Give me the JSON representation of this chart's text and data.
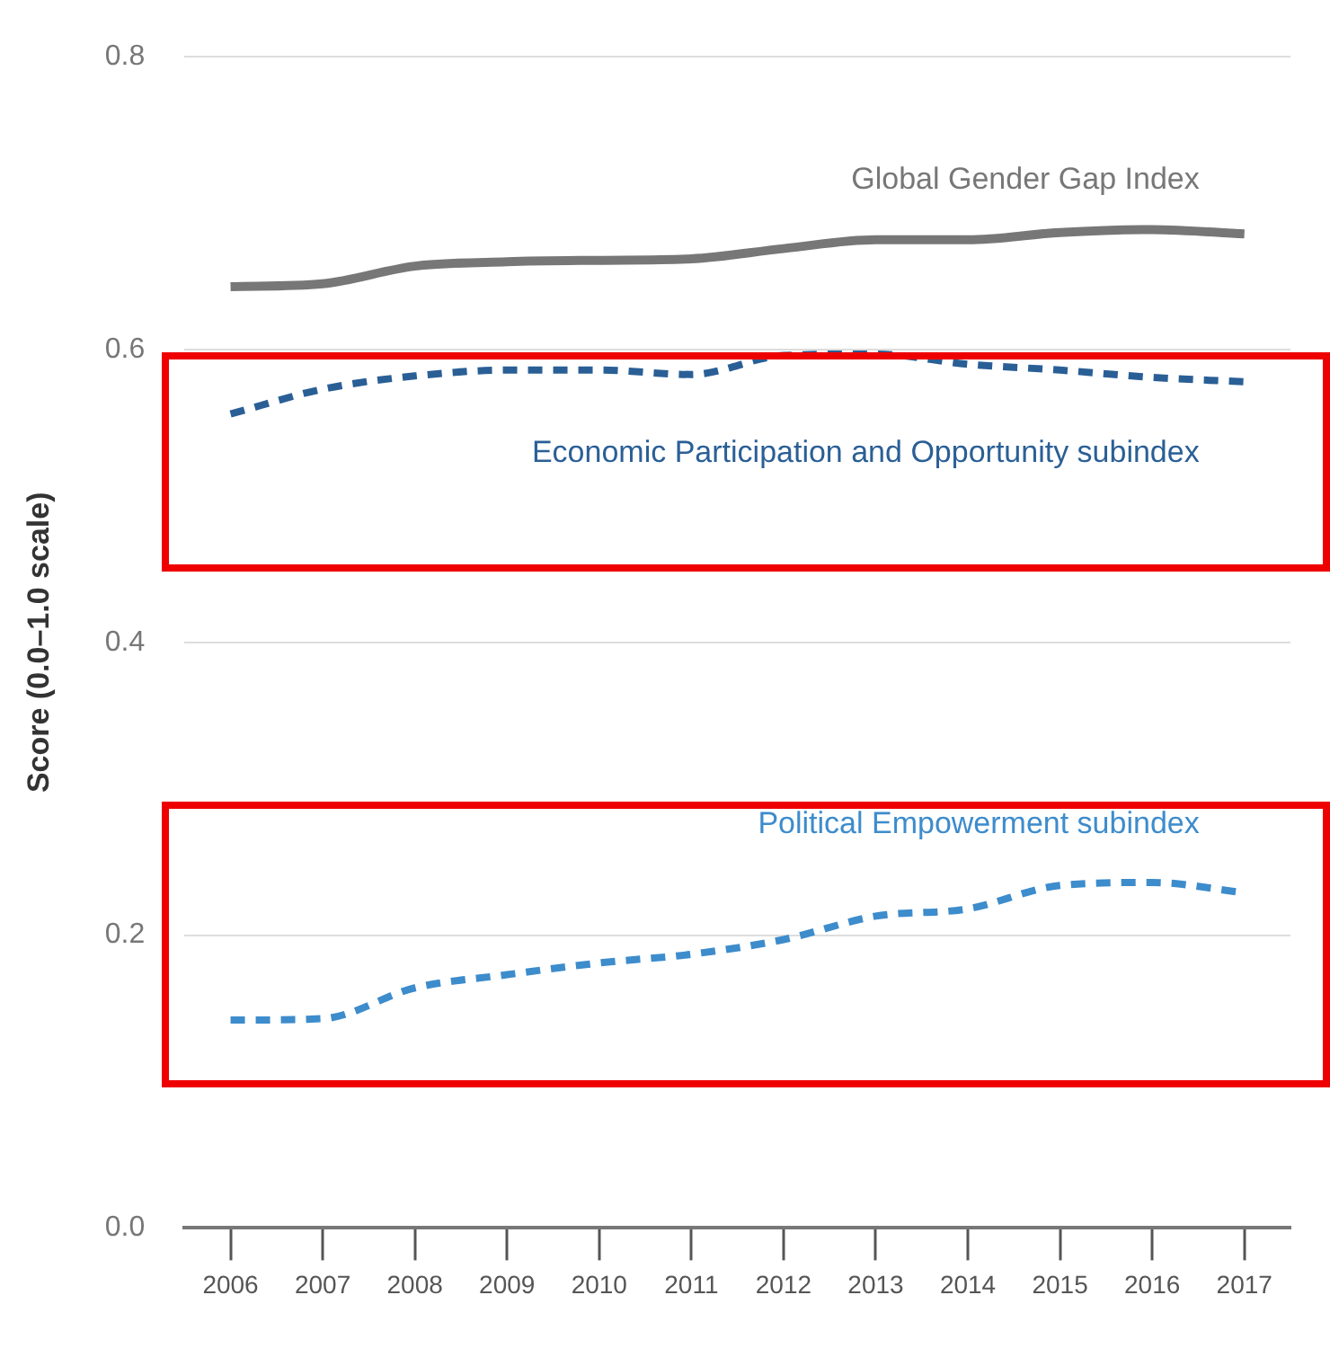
{
  "chart_data": {
    "type": "line",
    "ylabel": "Score (0.0–1.0 scale)",
    "categories": [
      "2006",
      "2007",
      "2008",
      "2009",
      "2010",
      "2011",
      "2012",
      "2013",
      "2014",
      "2015",
      "2016",
      "2017"
    ],
    "series": [
      {
        "name": "Global Gender Gap Index",
        "color": "#777777",
        "line_style": "solid",
        "values": [
          0.643,
          0.645,
          0.657,
          0.66,
          0.661,
          0.662,
          0.669,
          0.675,
          0.675,
          0.68,
          0.682,
          0.679
        ]
      },
      {
        "name": "Economic Participation and Opportunity subindex",
        "color": "#2a5f96",
        "line_style": "dashed",
        "values": [
          0.556,
          0.573,
          0.582,
          0.586,
          0.586,
          0.583,
          0.596,
          0.597,
          0.59,
          0.586,
          0.581,
          0.578
        ]
      },
      {
        "name": "Political Empowerment subindex",
        "color": "#3d8ccc",
        "line_style": "dashed",
        "values": [
          0.142,
          0.143,
          0.164,
          0.173,
          0.181,
          0.187,
          0.197,
          0.213,
          0.218,
          0.234,
          0.236,
          0.229
        ]
      }
    ],
    "ylim": [
      0,
      0.8
    ],
    "yticks": [
      {
        "value": 0,
        "label": "0.0"
      },
      {
        "value": 0.2,
        "label": "0.2"
      },
      {
        "value": 0.4,
        "label": "0.4"
      },
      {
        "value": 0.6,
        "label": "0.6"
      },
      {
        "value": 0.8,
        "label": "0.8"
      }
    ],
    "grid": "y",
    "legend": false,
    "marker": "none"
  }
}
